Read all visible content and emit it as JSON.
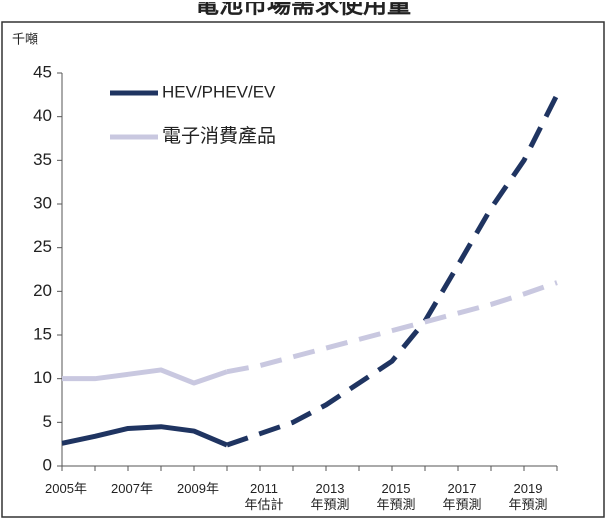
{
  "chart_data": {
    "type": "line",
    "title": "電池市場需求使用量",
    "y_unit": "千噸",
    "x": [
      2005,
      2006,
      2007,
      2008,
      2009,
      2010,
      2011,
      2012,
      2013,
      2014,
      2015,
      2016,
      2017,
      2018,
      2019,
      2020
    ],
    "xlim": [
      2005,
      2020
    ],
    "xticks": [
      {
        "value": 2005,
        "label": "2005年"
      },
      {
        "value": 2007,
        "label": "2007年"
      },
      {
        "value": 2009,
        "label": "2009年"
      },
      {
        "value": 2011,
        "label": "2011\n年估計"
      },
      {
        "value": 2013,
        "label": "2013\n年預測"
      },
      {
        "value": 2015,
        "label": "2015\n年預測"
      },
      {
        "value": 2017,
        "label": "2017\n年預測"
      },
      {
        "value": 2019,
        "label": "2019\n年預測"
      }
    ],
    "ylim": [
      0,
      45
    ],
    "yticks": [
      0,
      5,
      10,
      15,
      20,
      25,
      30,
      35,
      40,
      45
    ],
    "dashed_from": 2010,
    "legend": "top-left",
    "series": [
      {
        "name": "HEV/PHEV/EV",
        "color": "#1f3461",
        "values": [
          2.6,
          3.4,
          4.3,
          4.5,
          4.0,
          2.4,
          3.7,
          5.0,
          7.0,
          9.5,
          12.0,
          16.6,
          23.0,
          29.5,
          35.0,
          42.5
        ]
      },
      {
        "name": "電子消費產品",
        "color": "#c9c8e0",
        "values": [
          10,
          10,
          10.5,
          11,
          9.5,
          10.8,
          11.5,
          12.5,
          13.5,
          14.5,
          15.5,
          16.5,
          17.5,
          18.5,
          19.7,
          21
        ]
      }
    ]
  }
}
